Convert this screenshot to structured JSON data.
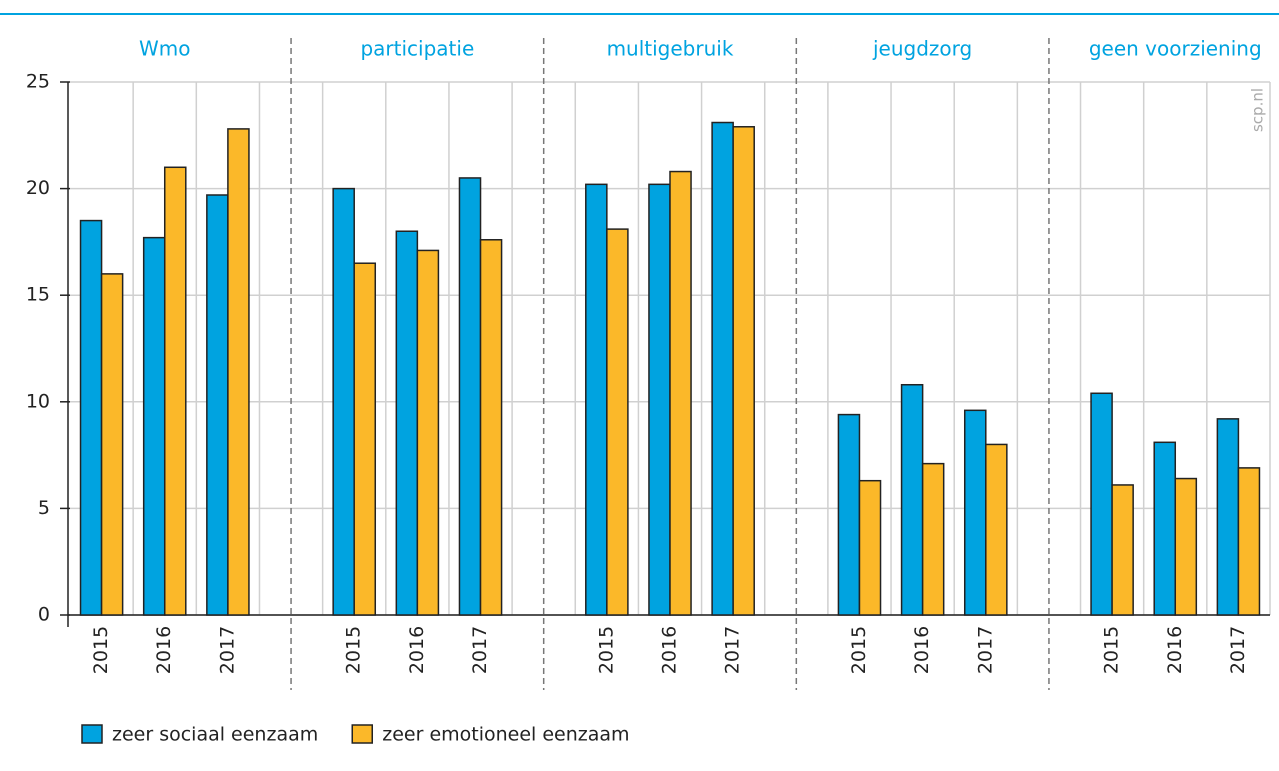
{
  "chart_data": {
    "type": "bar",
    "groups": [
      "Wmo",
      "participatie",
      "multigebruik",
      "jeugdzorg",
      "geen voorziening"
    ],
    "categories": [
      "2015",
      "2016",
      "2017",
      "2015",
      "2016",
      "2017",
      "2015",
      "2016",
      "2017",
      "2015",
      "2016",
      "2017",
      "2015",
      "2016",
      "2017"
    ],
    "series": [
      {
        "name": "zeer sociaal eenzaam",
        "color": "#00a3e0",
        "values": [
          18.5,
          17.7,
          19.7,
          20.0,
          18.0,
          20.5,
          20.2,
          20.2,
          23.1,
          9.4,
          10.8,
          9.6,
          10.4,
          8.1,
          9.2
        ]
      },
      {
        "name": "zeer emotioneel eenzaam",
        "color": "#fbb829",
        "values": [
          16.0,
          21.0,
          22.8,
          16.5,
          17.1,
          17.6,
          18.1,
          20.8,
          22.9,
          6.3,
          7.1,
          8.0,
          6.1,
          6.4,
          6.9
        ]
      }
    ],
    "ylim": [
      0,
      25
    ],
    "yticks": [
      0,
      5,
      10,
      15,
      20,
      25
    ],
    "grid": true,
    "legend": "bottom-left",
    "source": "scp.nl"
  }
}
